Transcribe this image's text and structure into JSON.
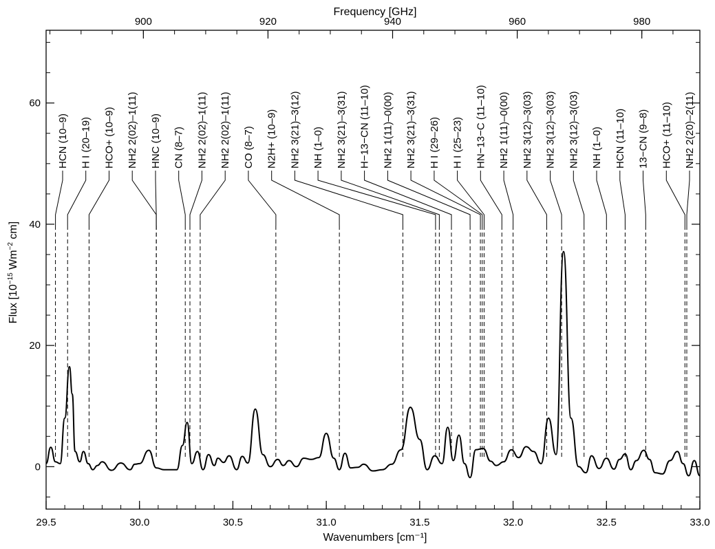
{
  "chart_data": {
    "type": "line",
    "title": "",
    "xlabel": "Wavenumbers [cm⁻¹]",
    "x2label": "Frequency [GHz]",
    "ylabel_main": "Flux [10",
    "ylabel_exp1": "−15",
    "ylabel_mid": " Wm",
    "ylabel_exp2": "−2",
    "ylabel_end": " cm]",
    "xlim": [
      29.5,
      33.0
    ],
    "ylim": [
      -7,
      72
    ],
    "grid": false,
    "xticks": [
      29.5,
      30.0,
      30.5,
      31.0,
      31.5,
      32.0,
      32.5,
      33.0
    ],
    "xtick_labels": [
      "29.5",
      "30.0",
      "30.5",
      "31.0",
      "31.5",
      "32.0",
      "32.5",
      "33.0"
    ],
    "x2ticks": [
      900,
      920,
      940,
      960,
      980
    ],
    "x2tick_labels": [
      "900",
      "920",
      "940",
      "960",
      "980"
    ],
    "yticks": [
      0,
      20,
      40,
      60
    ],
    "ytick_labels": [
      "0",
      "20",
      "40",
      "60"
    ],
    "series": [
      {
        "x": [
          29.5,
          29.525,
          29.55,
          29.575,
          29.6,
          29.625,
          29.64,
          29.655,
          29.68,
          29.7,
          29.725,
          29.75,
          29.775,
          29.8,
          29.85,
          29.9,
          29.95,
          29.975,
          30.0,
          30.05,
          30.09,
          30.13,
          30.17,
          30.2,
          30.23,
          30.255,
          30.28,
          30.31,
          30.34,
          30.37,
          30.4,
          30.42,
          30.45,
          30.48,
          30.52,
          30.55,
          30.58,
          30.62,
          30.66,
          30.7,
          30.74,
          30.77,
          30.8,
          30.84,
          30.88,
          30.92,
          30.96,
          31.0,
          31.04,
          31.07,
          31.1,
          31.13,
          31.17,
          31.2,
          31.25,
          31.3,
          31.35,
          31.4,
          31.45,
          31.5,
          31.54,
          31.58,
          31.62,
          31.65,
          31.68,
          31.71,
          31.74,
          31.77,
          31.8,
          31.84,
          31.88,
          31.91,
          31.95,
          31.99,
          32.03,
          32.07,
          32.11,
          32.15,
          32.19,
          32.23,
          32.27,
          32.31,
          32.35,
          32.39,
          32.42,
          32.46,
          32.5,
          32.54,
          32.57,
          32.6,
          32.63,
          32.66,
          32.7,
          32.73,
          32.76,
          32.8,
          32.84,
          32.88,
          32.91,
          32.94,
          32.97,
          33.0
        ],
        "y": [
          0.5,
          3.2,
          0.8,
          0.5,
          8.0,
          16.5,
          12.0,
          2.5,
          0.8,
          2.5,
          0.5,
          -0.5,
          0.2,
          0.8,
          -0.6,
          0.6,
          -0.5,
          0.4,
          0.5,
          2.7,
          -0.2,
          -0.5,
          -0.5,
          -0.5,
          3.5,
          7.3,
          0.5,
          2.5,
          -0.5,
          2.0,
          0.2,
          1.4,
          0.7,
          1.8,
          -0.5,
          1.7,
          0.6,
          9.5,
          2.0,
          0.0,
          1.2,
          0.2,
          1.0,
          0.0,
          1.4,
          1.2,
          1.5,
          5.5,
          1.4,
          -0.5,
          2.2,
          -0.2,
          -0.1,
          0.4,
          -0.7,
          -0.5,
          0.4,
          2.8,
          9.8,
          4.5,
          -0.5,
          1.8,
          0.5,
          6.5,
          1.0,
          5.2,
          0.5,
          -1.8,
          2.8,
          3.0,
          0.9,
          0.2,
          0.8,
          2.8,
          1.5,
          3.3,
          2.5,
          0.5,
          8.0,
          2.0,
          35.5,
          8.0,
          0.0,
          -1.0,
          1.8,
          -0.3,
          1.4,
          -0.4,
          1.2,
          2.1,
          -0.5,
          1.0,
          2.7,
          1.2,
          -1.0,
          -1.2,
          1.0,
          2.5,
          0.5,
          -1.5,
          1.0,
          -1.5
        ]
      }
    ],
    "lines": [
      {
        "x": 29.55,
        "label": "HCN (10–9)"
      },
      {
        "x": 29.615,
        "label": "H I (20–19)"
      },
      {
        "x": 29.73,
        "label": "HCO+ (10–9)"
      },
      {
        "x": 30.09,
        "label": "NH2 2(02)–1(11)"
      },
      {
        "x": 30.09,
        "label": "HNC (10–9)"
      },
      {
        "x": 30.245,
        "label": "CN (8–7)"
      },
      {
        "x": 30.27,
        "label": "NH2 2(02)–1(11)"
      },
      {
        "x": 30.325,
        "label": "NH2 2(02)–1(11)"
      },
      {
        "x": 30.73,
        "label": "CO (8–7)"
      },
      {
        "x": 31.07,
        "label": "N2H+ (10–9)"
      },
      {
        "x": 31.41,
        "label": "NH2 3(21)–3(12)"
      },
      {
        "x": 31.585,
        "label": "NH (1–0)"
      },
      {
        "x": 31.605,
        "label": "NH2 3(21)–3(31)"
      },
      {
        "x": 31.67,
        "label": "H−13−CN (11–10)"
      },
      {
        "x": 31.77,
        "label": "NH2 1(11)–0(00)"
      },
      {
        "x": 31.825,
        "label": "NH2 3(21)–3(31)"
      },
      {
        "x": 31.835,
        "label": "H I (29–26)"
      },
      {
        "x": 31.845,
        "label": "H I (25–23)"
      },
      {
        "x": 31.94,
        "label": "HN−13−C (11–10)"
      },
      {
        "x": 32.0,
        "label": "NH2 1(11)–0(00)"
      },
      {
        "x": 32.18,
        "label": "NH2 3(12)–3(03)"
      },
      {
        "x": 32.26,
        "label": "NH2 3(12)–3(03)"
      },
      {
        "x": 32.38,
        "label": "NH2 3(12)–3(03)"
      },
      {
        "x": 32.5,
        "label": "NH (1–0)"
      },
      {
        "x": 32.6,
        "label": "HCN (11–10)"
      },
      {
        "x": 32.71,
        "label": "13−CN (9–8)"
      },
      {
        "x": 32.92,
        "label": "HCO+ (11–10)"
      },
      {
        "x": 32.93,
        "label": "NH2 2(20)–2(11)"
      }
    ]
  }
}
